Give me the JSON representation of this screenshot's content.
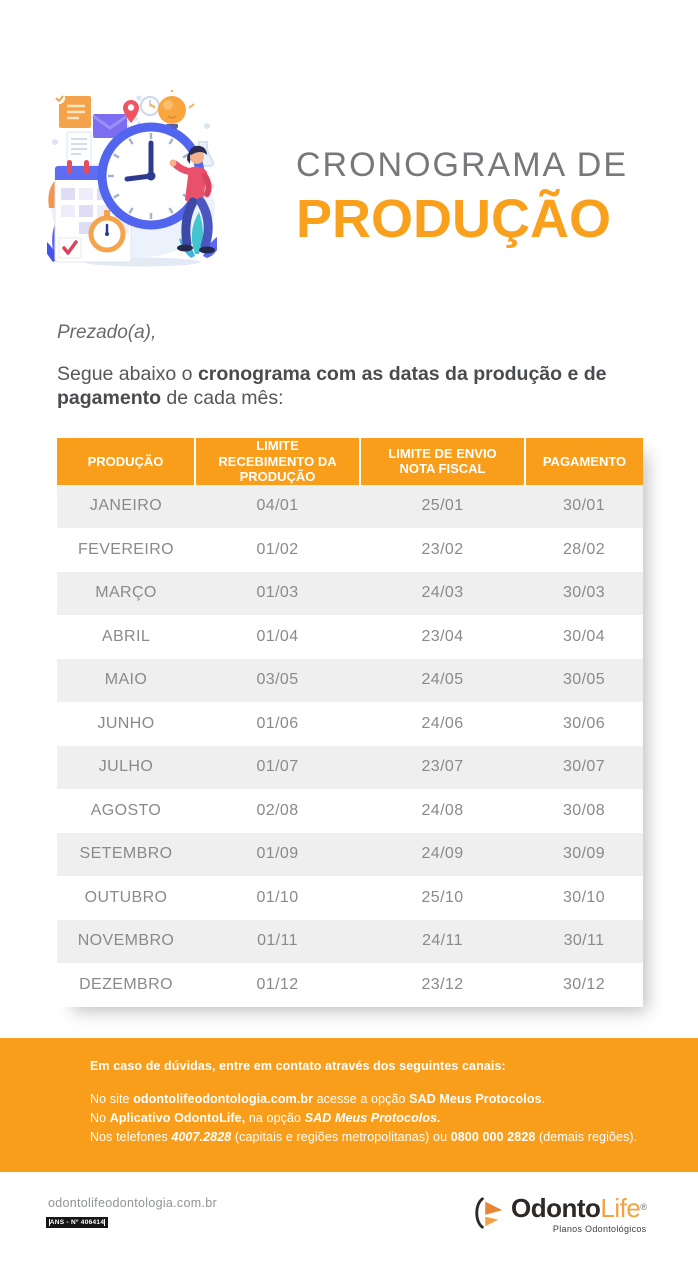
{
  "header": {
    "title_line1": "CRONOGRAMA DE",
    "title_line2": "PRODUÇÃO"
  },
  "intro": {
    "salutation": "Prezado(a),",
    "body_prefix": "Segue abaixo o ",
    "body_bold": "cronograma com as datas da produção e de pagamento",
    "body_suffix": " de cada mês:"
  },
  "table": {
    "headers": [
      "PRODUÇÃO",
      "LIMITE RECEBIMENTO DA PRODUÇÃO",
      "LIMITE DE ENVIO NOTA FISCAL",
      "PAGAMENTO"
    ],
    "rows": [
      {
        "month": "JANEIRO",
        "limite_recebimento": "04/01",
        "limite_envio": "25/01",
        "pagamento": "30/01"
      },
      {
        "month": "FEVEREIRO",
        "limite_recebimento": "01/02",
        "limite_envio": "23/02",
        "pagamento": "28/02"
      },
      {
        "month": "MARÇO",
        "limite_recebimento": "01/03",
        "limite_envio": "24/03",
        "pagamento": "30/03"
      },
      {
        "month": "ABRIL",
        "limite_recebimento": "01/04",
        "limite_envio": "23/04",
        "pagamento": "30/04"
      },
      {
        "month": "MAIO",
        "limite_recebimento": "03/05",
        "limite_envio": "24/05",
        "pagamento": "30/05"
      },
      {
        "month": "JUNHO",
        "limite_recebimento": "01/06",
        "limite_envio": "24/06",
        "pagamento": "30/06"
      },
      {
        "month": "JULHO",
        "limite_recebimento": "01/07",
        "limite_envio": "23/07",
        "pagamento": "30/07"
      },
      {
        "month": "AGOSTO",
        "limite_recebimento": "02/08",
        "limite_envio": "24/08",
        "pagamento": "30/08"
      },
      {
        "month": "SETEMBRO",
        "limite_recebimento": "01/09",
        "limite_envio": "24/09",
        "pagamento": "30/09"
      },
      {
        "month": "OUTUBRO",
        "limite_recebimento": "01/10",
        "limite_envio": "25/10",
        "pagamento": "30/10"
      },
      {
        "month": "NOVEMBRO",
        "limite_recebimento": "01/11",
        "limite_envio": "24/11",
        "pagamento": "30/11"
      },
      {
        "month": "DEZEMBRO",
        "limite_recebimento": "01/12",
        "limite_envio": "23/12",
        "pagamento": "30/12"
      }
    ]
  },
  "footer": {
    "heading": "Em caso de dúvidas, entre em contato através dos seguintes canais:",
    "contact_lines": [
      {
        "segments": [
          {
            "text": "No site ",
            "style": "r"
          },
          {
            "text": "odontolifeodontologia.com.br",
            "style": "b"
          },
          {
            "text": " acesse a opção ",
            "style": "r"
          },
          {
            "text": "SAD Meus Protocolos",
            "style": "b"
          },
          {
            "text": ".",
            "style": "r"
          }
        ]
      },
      {
        "segments": [
          {
            "text": "No ",
            "style": "r"
          },
          {
            "text": "Aplicativo OdontoLife,",
            "style": "b"
          },
          {
            "text": " na opção ",
            "style": "r"
          },
          {
            "text": "SAD Meus Protocolos.",
            "style": "bi"
          }
        ]
      },
      {
        "segments": [
          {
            "text": "Nos telefones ",
            "style": "r"
          },
          {
            "text": "4007.2828",
            "style": "bi"
          },
          {
            "text": " (capitais e regiões metropolitanas) ou ",
            "style": "r"
          },
          {
            "text": "0800 000 2828",
            "style": "b"
          },
          {
            "text": " (demais regiões).",
            "style": "r"
          }
        ]
      }
    ]
  },
  "bottom": {
    "website": "odontolifeodontologia.com.br",
    "ans_label": "ANS - Nº 406414",
    "logo": {
      "part1": "Odonto",
      "part2": "Life",
      "reg": "®",
      "tagline": "Planos Odontológicos"
    }
  },
  "colors": {
    "accent_orange": "#F99E1B",
    "title_orange": "#F9A01D",
    "title_gray": "#77787B",
    "row_stripe": "#EFEFEF",
    "table_text": "#8A8A8C",
    "body_text": "#55565A",
    "logo_dark": "#2D2926",
    "logo_orange": "#F2A243",
    "ans_badge_bg": "#161616"
  }
}
